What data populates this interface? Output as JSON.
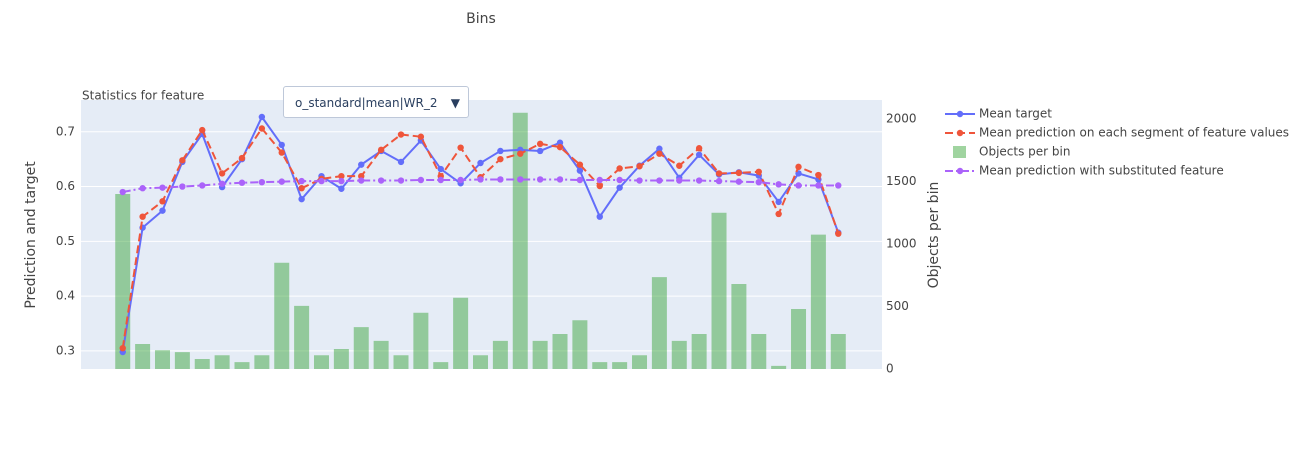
{
  "chart_data": {
    "type": "bins",
    "title": "Bins",
    "annotation": "Statistics for feature",
    "dropdown": {
      "selected": "o_standard|mean|WR_2",
      "arrow": "▼"
    },
    "ylabel": "Prediction and target",
    "y2label": "Objects per bin",
    "ylim": [
      0.267,
      0.758
    ],
    "yticks": [
      0.3,
      0.4,
      0.5,
      0.6,
      0.7
    ],
    "y2lim": [
      0,
      2152
    ],
    "y2ticks": [
      0,
      500,
      1000,
      1500,
      2000
    ],
    "grid": true,
    "background": "#e5ecf6",
    "series": [
      {
        "name": "Mean target",
        "kind": "line-markers",
        "color": "#636efa",
        "values": [
          0.298,
          0.525,
          0.556,
          0.645,
          0.696,
          0.599,
          0.65,
          0.727,
          0.676,
          0.577,
          0.619,
          0.596,
          0.64,
          0.665,
          0.645,
          0.684,
          0.632,
          0.606,
          0.643,
          0.665,
          0.667,
          0.665,
          0.68,
          0.629,
          0.545,
          0.598,
          0.638,
          0.669,
          0.616,
          0.658,
          0.622,
          0.626,
          0.62,
          0.572,
          0.624,
          0.613,
          0.516
        ]
      },
      {
        "name": "Mean prediction on each segment of feature values",
        "kind": "dash-markers",
        "color": "#ef553b",
        "values": [
          0.305,
          0.545,
          0.573,
          0.648,
          0.703,
          0.624,
          0.652,
          0.706,
          0.662,
          0.597,
          0.614,
          0.619,
          0.619,
          0.667,
          0.695,
          0.691,
          0.619,
          0.671,
          0.617,
          0.65,
          0.66,
          0.678,
          0.672,
          0.64,
          0.601,
          0.633,
          0.637,
          0.66,
          0.638,
          0.67,
          0.624,
          0.625,
          0.627,
          0.55,
          0.636,
          0.621,
          0.514
        ]
      },
      {
        "name": "Objects per bin",
        "kind": "bar",
        "axis": "y2",
        "color": "rgba(44,160,44,0.45)",
        "values": [
          1400,
          200,
          150,
          135,
          80,
          110,
          55,
          110,
          850,
          505,
          110,
          160,
          335,
          225,
          110,
          450,
          55,
          570,
          110,
          225,
          2050,
          225,
          280,
          390,
          55,
          55,
          110,
          735,
          225,
          280,
          1250,
          680,
          280,
          25,
          480,
          1075,
          280
        ]
      },
      {
        "name": "Mean prediction with substituted feature",
        "kind": "dashdot-markers",
        "color": "#ab63fa",
        "values": [
          0.59,
          0.597,
          0.598,
          0.6,
          0.602,
          0.605,
          0.607,
          0.608,
          0.609,
          0.61,
          0.61,
          0.61,
          0.611,
          0.611,
          0.611,
          0.612,
          0.612,
          0.612,
          0.613,
          0.613,
          0.613,
          0.613,
          0.613,
          0.612,
          0.612,
          0.612,
          0.611,
          0.611,
          0.611,
          0.611,
          0.61,
          0.609,
          0.608,
          0.604,
          0.602,
          0.602,
          0.602
        ]
      }
    ]
  }
}
